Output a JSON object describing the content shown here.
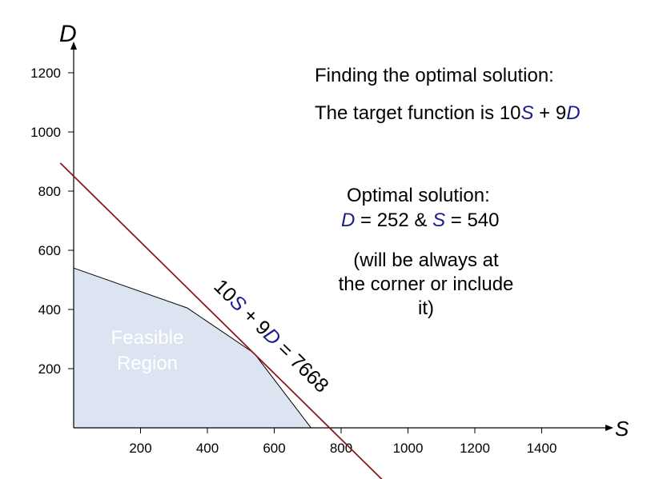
{
  "colors": {
    "var_blue": "#1a1a8c",
    "region_fill": "#dde4f1",
    "constraint_line": "#000000",
    "target_line": "#8b1a1a",
    "axis": "#000000"
  },
  "chart_data": {
    "type": "area",
    "x_axis": {
      "label": "S",
      "range": [
        0,
        1600
      ],
      "ticks": [
        200,
        400,
        600,
        800,
        1000,
        1200,
        1400
      ]
    },
    "y_axis": {
      "label": "D",
      "range": [
        0,
        1200
      ],
      "ticks": [
        200,
        400,
        600,
        800,
        1000,
        1200
      ]
    },
    "grid": false,
    "feasible_region": {
      "label_line1": "Feasible",
      "label_line2": "Region",
      "vertices": [
        [
          0,
          540
        ],
        [
          340,
          405
        ],
        [
          540,
          252
        ],
        [
          710,
          0
        ],
        [
          0,
          0
        ]
      ]
    },
    "target_line": {
      "equation": {
        "a": "10",
        "s": "S",
        "mid": " + 9",
        "d": "D",
        "rest": " = 7668"
      },
      "points": [
        [
          -40,
          895
        ],
        [
          930,
          -183
        ]
      ]
    }
  },
  "annotations": {
    "heading": "Finding the optimal solution:",
    "target": {
      "prefix": "The target function is 10",
      "s": "S",
      "mid": " + 9",
      "d": "D"
    },
    "optimal_title": "Optimal solution:",
    "optimal_values": {
      "d": "D",
      "d_val": " = 252 & ",
      "s": "S",
      "s_val": " = 540"
    },
    "note_line1": "(will be always at",
    "note_line2": "the corner or include",
    "note_line3": "it)"
  }
}
